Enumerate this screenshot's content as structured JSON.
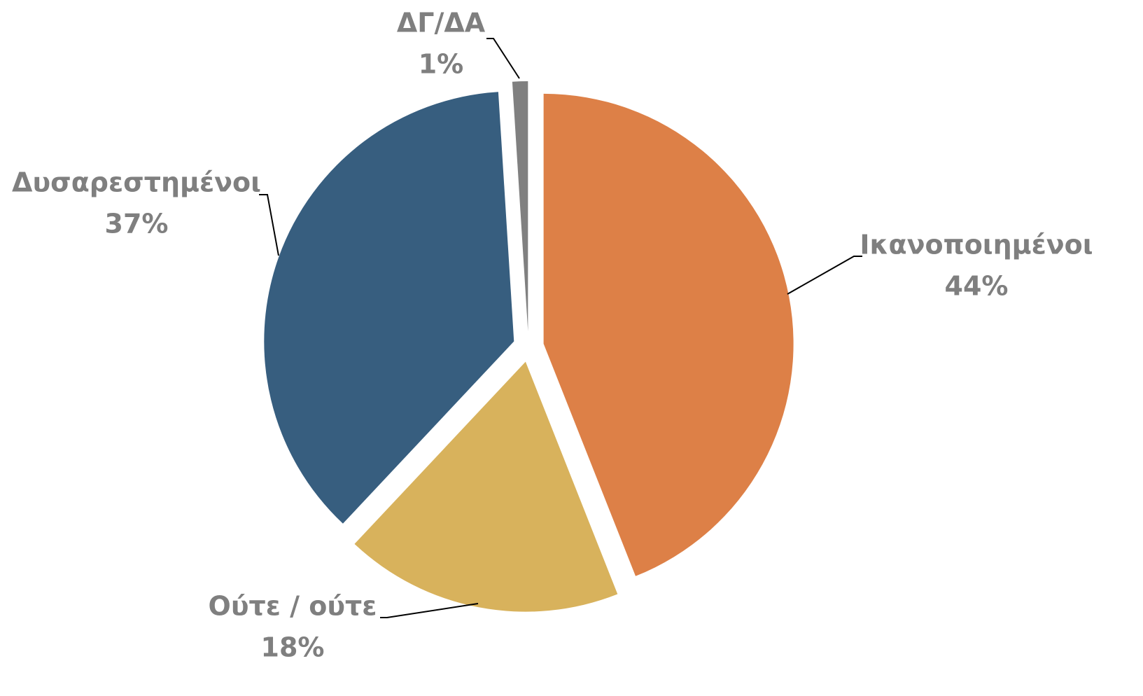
{
  "chart_data": {
    "type": "pie",
    "categories": [
      "Ικανοποιημένοι",
      "Ούτε / ούτε",
      "Δυσαρεστημένοι",
      "ΔΓ/ΔΑ"
    ],
    "values": [
      44,
      18,
      37,
      1
    ],
    "value_labels": [
      "44%",
      "18%",
      "37%",
      "1%"
    ],
    "colors": [
      "#dd8047",
      "#d8b25c",
      "#375e7f",
      "#808080"
    ]
  }
}
